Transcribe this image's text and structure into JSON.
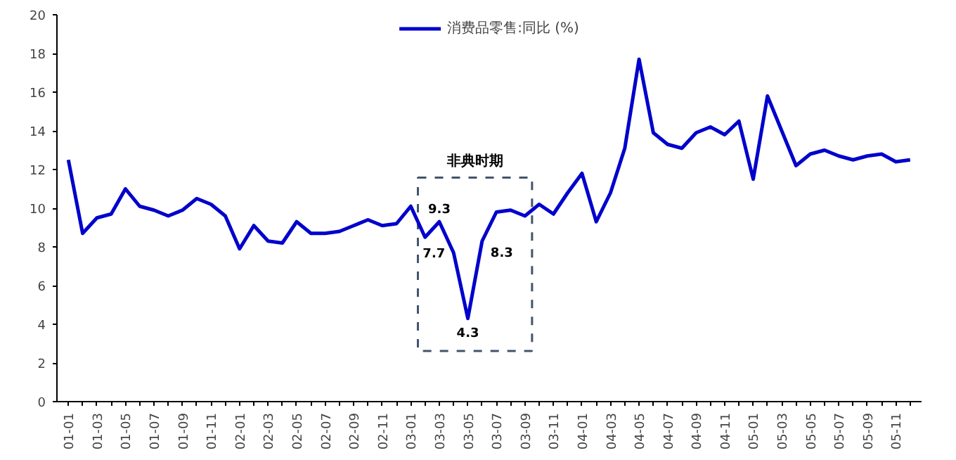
{
  "chart_data": {
    "type": "line",
    "categories": [
      "01-01",
      null,
      "01-03",
      null,
      "01-05",
      null,
      "01-07",
      null,
      "01-09",
      null,
      "01-11",
      null,
      "02-01",
      null,
      "02-03",
      null,
      "02-05",
      null,
      "02-07",
      null,
      "02-09",
      null,
      "02-11",
      null,
      "03-01",
      null,
      "03-03",
      null,
      "03-05",
      null,
      "03-07",
      null,
      "03-09",
      null,
      "03-11",
      null,
      "04-01",
      null,
      "04-03",
      null,
      "04-05",
      null,
      "04-07",
      null,
      "04-09",
      null,
      "04-11",
      null,
      "05-01",
      null,
      "05-03",
      null,
      "05-05",
      null,
      "05-07",
      null,
      "05-09",
      null,
      "05-11",
      null
    ],
    "series": [
      {
        "name": "消费品零售:同比 (%)",
        "color": "#0000cc",
        "values": [
          12.5,
          8.7,
          9.5,
          9.7,
          11.0,
          10.1,
          9.9,
          9.6,
          9.9,
          10.5,
          10.2,
          9.6,
          7.9,
          9.1,
          8.3,
          8.2,
          9.3,
          8.7,
          8.7,
          8.8,
          9.1,
          9.4,
          9.1,
          9.2,
          10.1,
          8.5,
          9.3,
          7.7,
          4.3,
          8.3,
          9.8,
          9.9,
          9.6,
          10.2,
          9.7,
          10.8,
          11.8,
          9.3,
          10.8,
          13.1,
          17.7,
          13.9,
          13.3,
          13.1,
          13.9,
          14.2,
          13.8,
          14.5,
          11.5,
          15.8,
          14.0,
          12.2,
          12.8,
          13.0,
          12.7,
          12.5,
          12.7,
          12.8,
          12.4,
          12.5
        ],
        "value_labels": [
          null,
          null,
          null,
          null,
          null,
          null,
          null,
          null,
          null,
          null,
          null,
          null,
          null,
          null,
          null,
          null,
          null,
          null,
          null,
          null,
          null,
          null,
          null,
          null,
          null,
          null,
          "9.3",
          "7.7",
          "4.3",
          "8.3",
          null,
          null,
          null,
          null,
          null,
          null,
          null,
          null,
          null,
          null,
          null,
          null,
          null,
          null,
          null,
          null,
          null,
          null,
          null,
          null,
          null,
          null,
          null,
          null,
          null,
          null,
          null,
          null,
          null,
          null
        ]
      }
    ],
    "annotations": [
      "非典时期"
    ],
    "ylim": [
      0,
      20
    ],
    "yticks": [
      0,
      2,
      4,
      6,
      8,
      10,
      12,
      14,
      16,
      18,
      20
    ],
    "grid": false,
    "legend": "top",
    "line_style": "solid",
    "marker": "none"
  }
}
